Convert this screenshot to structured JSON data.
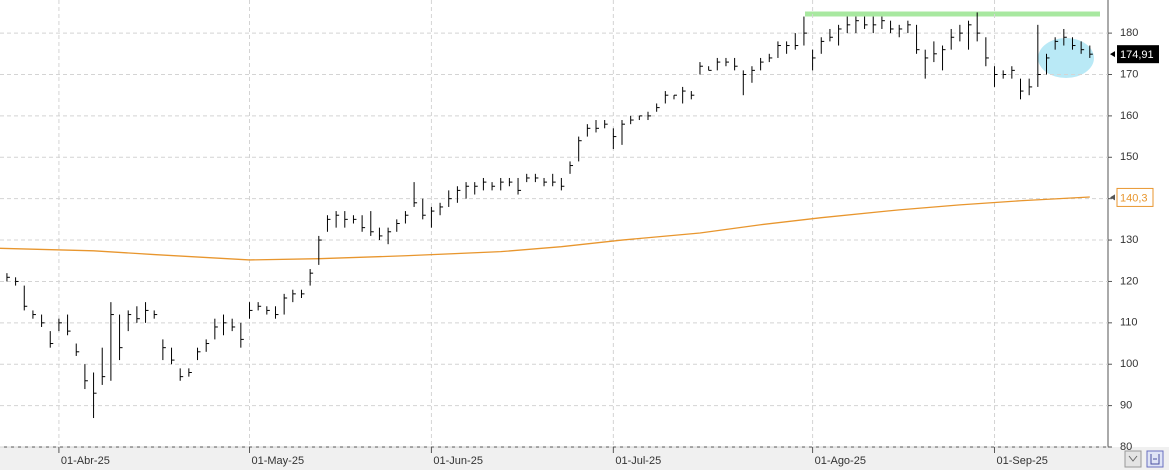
{
  "chart_data": {
    "type": "ohlc",
    "color": "#000000",
    "xlim": [
      -0.8,
      127.1
    ],
    "xticks": [
      {
        "value": 6,
        "label": "01-Abr-25"
      },
      {
        "value": 28,
        "label": "01-May-25"
      },
      {
        "value": 49,
        "label": "01-Jun-25"
      },
      {
        "value": 70,
        "label": "01-Jul-25"
      },
      {
        "value": 93,
        "label": "01-Ago-25"
      },
      {
        "value": 114,
        "label": "01-Sep-25"
      }
    ],
    "ylim": [
      80,
      188
    ],
    "yticks": [
      80,
      90,
      100,
      110,
      120,
      130,
      140,
      150,
      160,
      170,
      180
    ],
    "grid": true,
    "high": [
      122,
      121,
      119,
      113,
      112,
      108,
      111,
      112,
      105,
      100,
      98,
      104,
      115,
      112,
      113,
      114,
      115,
      113,
      106,
      104,
      99,
      99,
      104,
      106,
      111,
      112,
      111,
      110,
      115,
      115,
      114,
      114,
      117,
      118,
      118,
      123,
      131,
      136,
      137,
      137,
      136,
      136,
      137,
      133,
      133,
      135,
      137,
      144,
      140,
      138,
      139,
      142,
      143,
      144,
      144,
      145,
      144,
      145,
      145,
      145,
      146,
      146,
      145,
      146,
      145,
      149,
      155,
      158,
      159,
      159,
      157,
      159,
      160,
      160,
      161,
      163,
      166,
      165,
      167,
      166,
      173,
      172,
      174,
      174,
      174,
      171,
      172,
      174,
      175,
      178,
      178,
      180,
      184,
      176,
      179,
      181,
      182,
      184,
      184,
      184,
      184,
      184,
      183,
      182,
      183,
      182,
      176,
      178,
      177,
      181,
      182,
      183,
      185,
      179,
      172,
      171,
      172,
      169,
      169,
      182,
      175,
      179,
      181,
      179,
      178,
      177
    ],
    "low": [
      120,
      119,
      113,
      111,
      109,
      104,
      108,
      107,
      102,
      94,
      87,
      95,
      96,
      101,
      108,
      110,
      110,
      111,
      101,
      100,
      96,
      97,
      101,
      103,
      106,
      107,
      108,
      104,
      111,
      113,
      112,
      111,
      112,
      115,
      116,
      119,
      124,
      132,
      133,
      133,
      134,
      132,
      131,
      130,
      129,
      132,
      134,
      138,
      135,
      133,
      136,
      138,
      139,
      140,
      141,
      142,
      142,
      142,
      143,
      141,
      144,
      144,
      143,
      143,
      142,
      146,
      149,
      155,
      156,
      157,
      152,
      153,
      158,
      159,
      159,
      161,
      163,
      164,
      163,
      164,
      170,
      171,
      171,
      172,
      171,
      165,
      168,
      171,
      173,
      174,
      175,
      176,
      177,
      171,
      175,
      178,
      177,
      180,
      180,
      181,
      180,
      181,
      180,
      179,
      180,
      175,
      169,
      173,
      171,
      176,
      178,
      176,
      178,
      172,
      167,
      169,
      169,
      164,
      165,
      167,
      170,
      176,
      177,
      176,
      175,
      174
    ],
    "close": [
      121,
      120,
      114,
      112,
      110,
      105,
      110,
      108,
      103,
      96,
      93,
      97,
      112,
      104,
      112,
      111,
      113,
      112,
      104,
      101,
      97,
      98,
      103,
      105,
      109,
      110,
      109,
      106,
      113,
      114,
      113,
      112,
      116,
      117,
      117,
      122,
      130,
      135,
      136,
      135,
      135,
      133,
      132,
      131,
      132,
      134,
      136,
      139,
      136,
      137,
      138,
      140,
      142,
      143,
      143,
      144,
      143,
      144,
      144,
      142,
      145,
      145,
      144,
      144,
      143,
      148,
      154,
      157,
      157,
      158,
      155,
      158,
      159,
      160,
      160,
      162,
      165,
      165,
      166,
      165,
      172,
      171,
      173,
      173,
      172,
      170,
      171,
      173,
      174,
      177,
      177,
      177,
      180,
      174,
      178,
      179,
      181,
      182,
      183,
      182,
      182,
      183,
      181,
      181,
      182,
      176,
      174,
      175,
      176,
      179,
      180,
      182,
      180,
      174,
      170,
      170,
      171,
      166,
      167,
      170,
      174,
      178,
      179,
      177,
      176,
      174.91
    ],
    "last_price": {
      "value": 174.91,
      "label": "174,91"
    },
    "moving_average": {
      "color": "#e8962e",
      "x": [
        -0.8,
        10,
        17,
        28,
        36,
        46,
        57,
        64,
        71,
        80,
        87,
        94,
        103,
        110,
        117,
        125
      ],
      "values": [
        128,
        127.4,
        126.5,
        125.2,
        125.5,
        126.2,
        127.2,
        128.4,
        130,
        131.7,
        133.7,
        135.4,
        137.3,
        138.5,
        139.5,
        140.4
      ],
      "last": {
        "value": 140.3,
        "label": "140,3"
      }
    }
  }
}
